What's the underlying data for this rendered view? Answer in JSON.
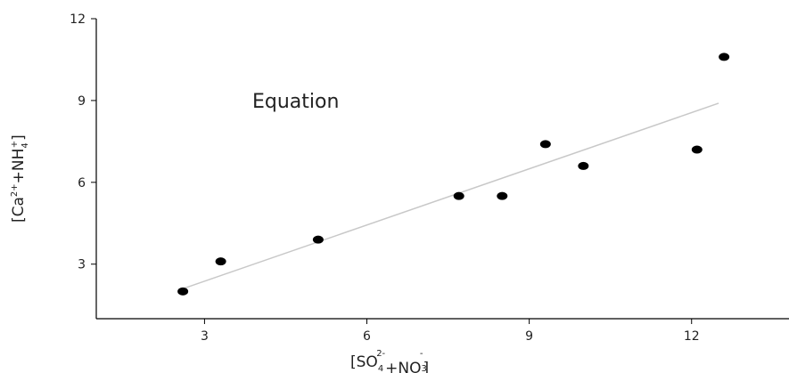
{
  "chart_data": {
    "type": "scatter",
    "annotation": "Equation",
    "x_label_parts": [
      "[SO",
      "4",
      "2-",
      "+NO",
      "3",
      "-",
      "]"
    ],
    "y_label_parts": [
      "[Ca",
      "2+",
      "+NH",
      "4",
      "+",
      "]"
    ],
    "x": [
      2.6,
      3.3,
      5.1,
      7.7,
      8.5,
      9.3,
      10.0,
      12.1,
      12.6
    ],
    "values": [
      2.0,
      3.1,
      3.9,
      5.5,
      5.5,
      7.4,
      6.6,
      7.2,
      10.6
    ],
    "color": "#000000",
    "fit": {
      "x": [
        2.6,
        12.5
      ],
      "y": [
        2.1,
        8.9
      ],
      "color": "#c8c8c8"
    },
    "xlim": [
      1,
      13.8
    ],
    "ylim": [
      1,
      12
    ],
    "xticks": [
      3,
      6,
      9,
      12
    ],
    "yticks": [
      3,
      6,
      9,
      12
    ]
  }
}
